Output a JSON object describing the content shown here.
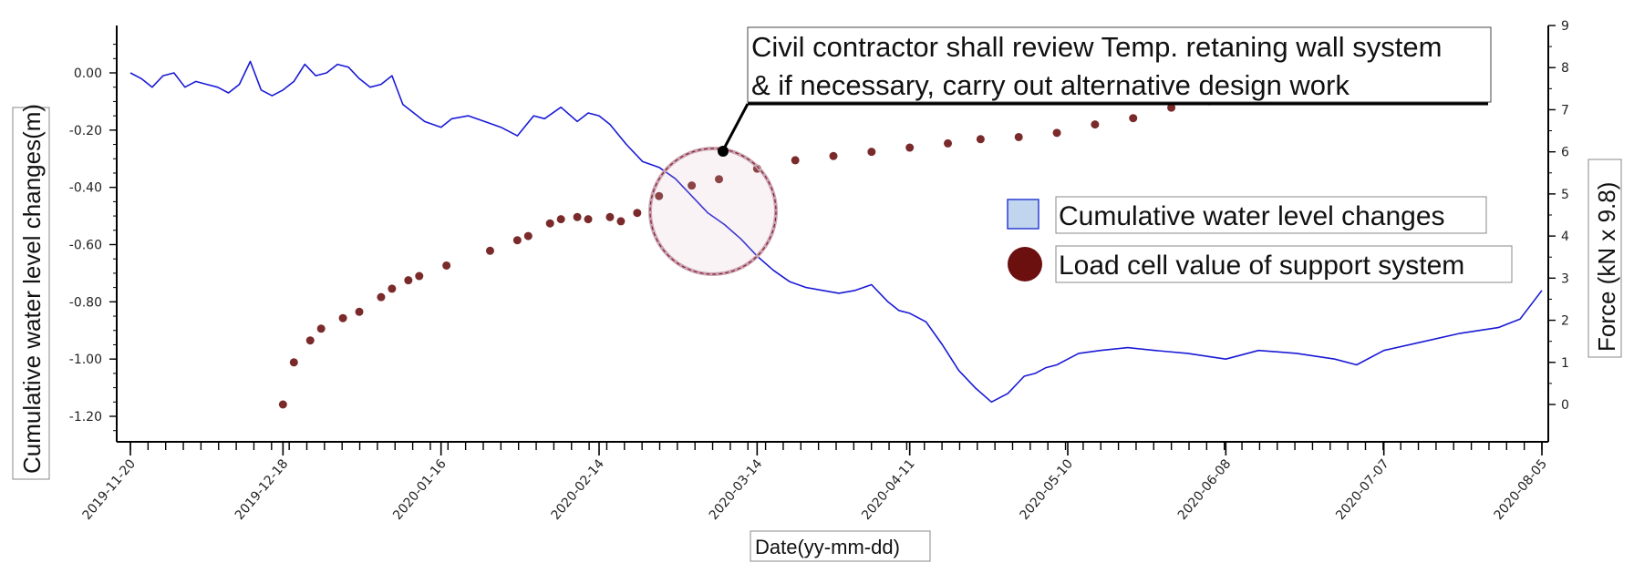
{
  "chart_data": {
    "type": "line",
    "xlabel": "Date(yy-mm-dd)",
    "ylabel_left": "Cumulative water level changes(m)",
    "ylabel_right": "Force (kN x 9.8)",
    "x_ticks": [
      "2019-11-20",
      "2019-12-18",
      "2020-01-16",
      "2020-02-14",
      "2020-03-14",
      "2020-04-11",
      "2020-05-10",
      "2020-06-08",
      "2020-07-07",
      "2020-08-05"
    ],
    "x_range": [
      "2019-11-20",
      "2020-08-05"
    ],
    "y_left_ticks": [
      "0.00",
      "-0.20",
      "-0.40",
      "-0.60",
      "-0.80",
      "-1.00",
      "-1.20"
    ],
    "y_left_range": [
      -1.28,
      0.16
    ],
    "y_right_ticks": [
      "0",
      "1",
      "2",
      "3",
      "4",
      "5",
      "6",
      "7",
      "8",
      "9"
    ],
    "y_right_range": [
      -0.5,
      9.0
    ],
    "grid": false,
    "legend_position": "right",
    "series": [
      {
        "name": "Cumulative water level changes",
        "axis": "left",
        "style": "line",
        "color": "#1a1ad6",
        "x": [
          "2019-11-20",
          "2019-11-22",
          "2019-11-24",
          "2019-11-26",
          "2019-11-28",
          "2019-11-30",
          "2019-12-02",
          "2019-12-04",
          "2019-12-06",
          "2019-12-08",
          "2019-12-10",
          "2019-12-12",
          "2019-12-14",
          "2019-12-16",
          "2019-12-18",
          "2019-12-20",
          "2019-12-22",
          "2019-12-24",
          "2019-12-26",
          "2019-12-28",
          "2019-12-30",
          "2020-01-01",
          "2020-01-03",
          "2020-01-05",
          "2020-01-07",
          "2020-01-09",
          "2020-01-11",
          "2020-01-13",
          "2020-01-16",
          "2020-01-18",
          "2020-01-21",
          "2020-01-24",
          "2020-01-27",
          "2020-01-30",
          "2020-02-02",
          "2020-02-04",
          "2020-02-07",
          "2020-02-10",
          "2020-02-12",
          "2020-02-14",
          "2020-02-16",
          "2020-02-19",
          "2020-02-22",
          "2020-02-25",
          "2020-02-28",
          "2020-03-02",
          "2020-03-05",
          "2020-03-08",
          "2020-03-11",
          "2020-03-14",
          "2020-03-17",
          "2020-03-20",
          "2020-03-23",
          "2020-03-26",
          "2020-03-29",
          "2020-04-01",
          "2020-04-04",
          "2020-04-07",
          "2020-04-09",
          "2020-04-11",
          "2020-04-14",
          "2020-04-17",
          "2020-04-20",
          "2020-04-23",
          "2020-04-26",
          "2020-04-29",
          "2020-05-02",
          "2020-05-04",
          "2020-05-06",
          "2020-05-08",
          "2020-05-10",
          "2020-05-12",
          "2020-05-16",
          "2020-05-21",
          "2020-05-26",
          "2020-06-01",
          "2020-06-08",
          "2020-06-14",
          "2020-06-21",
          "2020-06-28",
          "2020-07-02",
          "2020-07-07",
          "2020-07-14",
          "2020-07-21",
          "2020-07-28",
          "2020-08-01",
          "2020-08-05"
        ],
        "values": [
          0.0,
          -0.02,
          -0.05,
          -0.01,
          0.0,
          -0.05,
          -0.03,
          -0.04,
          -0.05,
          -0.07,
          -0.04,
          0.04,
          -0.06,
          -0.08,
          -0.06,
          -0.03,
          0.03,
          -0.01,
          0.0,
          0.03,
          0.02,
          -0.02,
          -0.05,
          -0.04,
          -0.01,
          -0.11,
          -0.14,
          -0.17,
          -0.19,
          -0.16,
          -0.15,
          -0.17,
          -0.19,
          -0.22,
          -0.15,
          -0.16,
          -0.12,
          -0.17,
          -0.14,
          -0.15,
          -0.18,
          -0.25,
          -0.31,
          -0.33,
          -0.37,
          -0.43,
          -0.49,
          -0.53,
          -0.58,
          -0.64,
          -0.69,
          -0.73,
          -0.75,
          -0.76,
          -0.77,
          -0.76,
          -0.74,
          -0.8,
          -0.83,
          -0.84,
          -0.87,
          -0.95,
          -1.04,
          -1.1,
          -1.15,
          -1.12,
          -1.06,
          -1.05,
          -1.03,
          -1.02,
          -1.0,
          -0.98,
          -0.97,
          -0.96,
          -0.97,
          -0.98,
          -1.0,
          -0.97,
          -0.98,
          -1.0,
          -1.02,
          -0.97,
          -0.94,
          -0.91,
          -0.89,
          -0.86,
          -0.76
        ]
      },
      {
        "name": "Load cell value of support system",
        "axis": "right",
        "style": "dots",
        "color": "#7a1f1f",
        "x": [
          "2019-12-18",
          "2019-12-20",
          "2019-12-23",
          "2019-12-25",
          "2019-12-29",
          "2020-01-01",
          "2020-01-05",
          "2020-01-07",
          "2020-01-10",
          "2020-01-12",
          "2020-01-17",
          "2020-01-25",
          "2020-01-30",
          "2020-02-01",
          "2020-02-05",
          "2020-02-07",
          "2020-02-10",
          "2020-02-12",
          "2020-02-16",
          "2020-02-18",
          "2020-02-21",
          "2020-02-25",
          "2020-03-02",
          "2020-03-07",
          "2020-03-14",
          "2020-03-21",
          "2020-03-28",
          "2020-04-04",
          "2020-04-11",
          "2020-04-18",
          "2020-04-24",
          "2020-05-01",
          "2020-05-08",
          "2020-05-15",
          "2020-05-22",
          "2020-05-29",
          "2020-06-05"
        ],
        "values": [
          0.0,
          1.0,
          1.52,
          1.8,
          2.05,
          2.2,
          2.55,
          2.75,
          2.95,
          3.05,
          3.3,
          3.65,
          3.9,
          4.0,
          4.3,
          4.4,
          4.45,
          4.4,
          4.45,
          4.35,
          4.55,
          4.95,
          5.2,
          5.35,
          5.6,
          5.8,
          5.9,
          6.0,
          6.1,
          6.2,
          6.3,
          6.35,
          6.45,
          6.65,
          6.8,
          7.05,
          7.2
        ]
      }
    ],
    "annotation": {
      "lines": [
        "Civil contractor shall review Temp. retaning wall system",
        "& if necessary, carry out alternative design work"
      ]
    }
  }
}
